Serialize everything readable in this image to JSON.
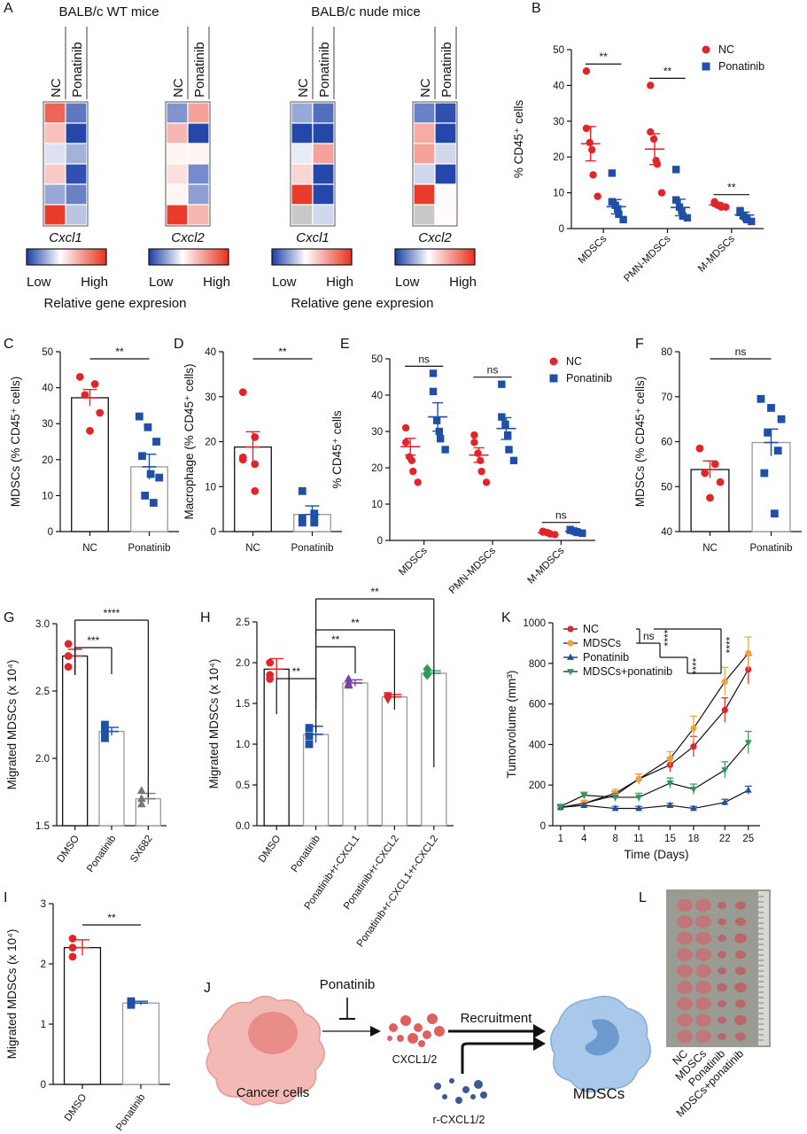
{
  "colors": {
    "nc": "#e0262a",
    "pon": "#1f4fa6",
    "mdsc": "#f0a23a",
    "mp": "#2e8a4a",
    "purple": "#7b3fa0",
    "green": "#2e9a58",
    "gray": "#777777",
    "hm_blue": "#1a3da6",
    "hm_red": "#e8301f"
  },
  "panels": {
    "A": {
      "label": "A",
      "group_titles": [
        "BALB/c WT mice",
        "BALB/c nude mice"
      ],
      "col_labels": [
        "NC",
        "Ponatinib"
      ],
      "heatmaps": [
        {
          "gene": "Cxcl1",
          "cells": [
            [
              0.75,
              -0.7
            ],
            [
              0.3,
              -0.95
            ],
            [
              -0.15,
              -0.4
            ],
            [
              0.25,
              -0.9
            ],
            [
              -0.45,
              -0.65
            ],
            [
              0.95,
              -0.3
            ]
          ]
        },
        {
          "gene": "Cxcl2",
          "cells": [
            [
              -0.55,
              0.45
            ],
            [
              0.35,
              -0.95
            ],
            [
              0.05,
              0.05
            ],
            [
              0.15,
              -0.6
            ],
            [
              0.05,
              -0.5
            ],
            [
              0.95,
              0.35
            ]
          ]
        },
        {
          "gene": "Cxcl1",
          "cells": [
            [
              -0.45,
              -0.75
            ],
            [
              -0.95,
              -0.95
            ],
            [
              -0.1,
              0.45
            ],
            [
              0.2,
              -0.95
            ],
            [
              0.95,
              -0.95
            ],
            [
              "na",
              -0.2
            ]
          ]
        },
        {
          "gene": "Cxcl2",
          "cells": [
            [
              -0.65,
              -0.9
            ],
            [
              0.4,
              -0.95
            ],
            [
              0.45,
              -0.2
            ],
            [
              -0.2,
              -0.95
            ],
            [
              0.95,
              0.02
            ],
            [
              "na",
              0.02
            ]
          ]
        }
      ],
      "legend_low": "Low",
      "legend_high": "High",
      "legend_title": "Relative gene expresion"
    },
    "B": {
      "label": "B",
      "chart_data": {
        "type": "scatter",
        "categories": [
          "MDSCs",
          "PMN-MDSCs",
          "M-MDSCs"
        ],
        "ylabel": "% CD45⁺ cells",
        "ylim": [
          0,
          50
        ],
        "yticks": [
          0,
          10,
          20,
          30,
          40,
          50
        ],
        "series": [
          {
            "name": "NC",
            "points": [
              [
                44,
                28,
                24,
                22,
                15,
                9
              ],
              [
                40,
                27,
                25,
                19,
                18,
                10
              ],
              [
                7.5,
                7,
                6.5,
                6.5,
                6,
                6
              ]
            ],
            "mean": [
              23.7,
              22.2,
              6.6
            ],
            "sem": [
              4.8,
              4.3,
              0.5
            ]
          },
          {
            "name": "Ponatinib",
            "points": [
              [
                15.5,
                7.5,
                6.5,
                5.5,
                4,
                2.5
              ],
              [
                16.5,
                8,
                6,
                5,
                3.5,
                3
              ],
              [
                5,
                4.5,
                3.5,
                3,
                2.5,
                2
              ]
            ],
            "mean": [
              6.1,
              5.9,
              3.8
            ],
            "sem": [
              2.0,
              2.3,
              0.8
            ]
          }
        ],
        "significance": [
          "**",
          "**",
          "**"
        ],
        "legend_position": "top-right"
      }
    },
    "C": {
      "label": "C",
      "chart_data": {
        "type": "bar",
        "categories": [
          "NC",
          "Ponatinib"
        ],
        "ylabel": "MDSCs (% CD45⁺ cells)",
        "ylim": [
          0,
          50
        ],
        "yticks": [
          0,
          10,
          20,
          30,
          40,
          50
        ],
        "values": [
          37.2,
          18.0
        ],
        "sem": [
          2.3,
          3.5
        ],
        "points": [
          [
            43,
            41,
            38,
            33,
            28
          ],
          [
            32,
            29,
            25,
            21,
            16,
            15,
            10,
            8
          ]
        ],
        "significance": "**"
      }
    },
    "D": {
      "label": "D",
      "chart_data": {
        "type": "bar",
        "categories": [
          "NC",
          "Ponatinib"
        ],
        "ylabel": "Macrophage (% CD45⁺ cells)",
        "ylim": [
          0,
          40
        ],
        "yticks": [
          0,
          10,
          20,
          30,
          40
        ],
        "values": [
          18.8,
          3.8
        ],
        "sem": [
          3.4,
          1.9
        ],
        "points": [
          [
            31,
            21,
            16,
            15,
            16.5,
            9
          ],
          [
            9,
            4,
            3,
            2.5,
            2,
            2
          ]
        ],
        "significance": "**"
      }
    },
    "E": {
      "label": "E",
      "chart_data": {
        "type": "scatter",
        "categories": [
          "MDSCs",
          "PMN-MDSCs",
          "M-MDSCs"
        ],
        "ylabel": "% CD45⁺ cells",
        "ylim": [
          0,
          50
        ],
        "yticks": [
          0,
          10,
          20,
          30,
          40,
          50
        ],
        "series": [
          {
            "name": "NC",
            "points": [
              [
                31,
                27,
                23,
                22,
                19,
                16
              ],
              [
                29,
                27,
                24,
                22,
                19,
                16
              ],
              [
                2.5,
                2.3,
                2.2,
                2,
                1.8,
                1.6
              ]
            ],
            "mean": [
              25.8,
              23.5,
              2.1
            ],
            "sem": [
              2.3,
              2.0,
              0.2
            ]
          },
          {
            "name": "Ponatinib",
            "points": [
              [
                46,
                41,
                33,
                30,
                28,
                25
              ],
              [
                43,
                34,
                32,
                29,
                25,
                22
              ],
              [
                3,
                2.8,
                2.6,
                2.4,
                2.2,
                2
              ]
            ],
            "mean": [
              34.0,
              30.8,
              2.5
            ],
            "sem": [
              3.9,
              3.0,
              0.2
            ]
          }
        ],
        "significance": [
          "ns",
          "ns",
          "ns"
        ],
        "legend_position": "top-right"
      }
    },
    "F": {
      "label": "F",
      "chart_data": {
        "type": "bar",
        "categories": [
          "NC",
          "Ponatinib"
        ],
        "ylabel": "MDSCs (% CD45⁺ cells)",
        "ylim": [
          40,
          80
        ],
        "yticks": [
          40,
          50,
          60,
          70,
          80
        ],
        "values": [
          53.8,
          59.8
        ],
        "sem": [
          1.9,
          3.0
        ],
        "points": [
          [
            58.5,
            55,
            53,
            51,
            47.5
          ],
          [
            69.5,
            67.5,
            65,
            62,
            58,
            53,
            44
          ]
        ],
        "significance": "ns"
      }
    },
    "G": {
      "label": "G",
      "chart_data": {
        "type": "bar",
        "categories": [
          "DMSO",
          "Ponatinib",
          "SX682"
        ],
        "ylabel": "Migrated MDSCs (x 10⁴)",
        "ylim": [
          1.5,
          3.0
        ],
        "yticks": [
          "1.5",
          "2.0",
          "2.5",
          "3.0"
        ],
        "values": [
          2.76,
          2.2,
          1.7
        ],
        "sem": [
          0.05,
          0.03,
          0.04
        ],
        "points": [
          [
            2.85,
            2.76,
            2.68
          ],
          [
            2.25,
            2.2,
            2.15
          ],
          [
            1.76,
            1.7,
            1.66
          ]
        ],
        "markers": [
          "circle",
          "square",
          "triangle"
        ],
        "significance": [
          {
            "from": 0,
            "to": 1,
            "label": "***"
          },
          {
            "from": 0,
            "to": 2,
            "label": "****"
          }
        ]
      }
    },
    "H": {
      "label": "H",
      "chart_data": {
        "type": "bar",
        "categories": [
          "DMSO",
          "Ponatinib",
          "Ponatinib+r-CXCL1",
          "Ponatinib+r-CXCL2",
          "Ponatinib+r-CXCL1+r-CXCL2"
        ],
        "ylabel": "Migrated MDSCs (x 10⁴)",
        "ylim": [
          0,
          2.5
        ],
        "yticks": [
          "0.0",
          "0.5",
          "1.0",
          "1.5",
          "2.0",
          "2.5"
        ],
        "values": [
          1.92,
          1.12,
          1.75,
          1.58,
          1.87
        ],
        "sem": [
          0.13,
          0.1,
          0.04,
          0.03,
          0.03
        ],
        "points": [
          [
            2.0,
            1.85,
            1.8
          ],
          [
            1.2,
            1.1,
            1.0
          ],
          [
            1.8,
            1.74,
            1.72
          ],
          [
            1.6,
            1.57,
            1.55
          ],
          [
            1.92,
            1.87,
            1.85
          ]
        ],
        "markers": [
          "circle",
          "square",
          "triangle",
          "inverted-triangle",
          "diamond"
        ],
        "significance": [
          {
            "from": 0,
            "to": 1,
            "label": "**"
          },
          {
            "from": 1,
            "to": 2,
            "label": "**"
          },
          {
            "from": 1,
            "to": 3,
            "label": "**"
          },
          {
            "from": 1,
            "to": 4,
            "label": "**"
          }
        ]
      }
    },
    "K": {
      "label": "K",
      "chart_data": {
        "type": "line",
        "x": [
          "1",
          "4",
          "8",
          "11",
          "15",
          "18",
          "22",
          "25"
        ],
        "xlabel": "Time (Days)",
        "ylabel": "Tumorvolume (mm³)",
        "ylim": [
          0,
          1000
        ],
        "yticks": [
          0,
          200,
          400,
          600,
          800,
          1000
        ],
        "series": [
          {
            "name": "NC",
            "values": [
              90,
              110,
              150,
              230,
              300,
              390,
              570,
              770
            ],
            "err": [
              10,
              15,
              20,
              25,
              35,
              50,
              60,
              70
            ]
          },
          {
            "name": "MDSCs",
            "values": [
              90,
              110,
              160,
              230,
              330,
              480,
              710,
              850
            ],
            "err": [
              10,
              15,
              20,
              25,
              35,
              60,
              70,
              80
            ]
          },
          {
            "name": "Ponatinib",
            "values": [
              90,
              100,
              85,
              85,
              100,
              85,
              115,
              175
            ],
            "err": [
              10,
              10,
              10,
              10,
              10,
              10,
              15,
              20
            ]
          },
          {
            "name": "MDSCs+ponatinib",
            "values": [
              95,
              150,
              140,
              140,
              210,
              180,
              275,
              410
            ],
            "err": [
              10,
              15,
              20,
              20,
              25,
              25,
              40,
              55
            ]
          }
        ],
        "significance": [
          "ns",
          "****",
          "****",
          "****"
        ],
        "legend_position": "top-left"
      }
    },
    "I": {
      "label": "I",
      "chart_data": {
        "type": "bar",
        "categories": [
          "DMSO",
          "Ponatinib"
        ],
        "ylabel": "Migrated MDSCs (x 10⁴)",
        "ylim": [
          0,
          3
        ],
        "yticks": [
          0,
          1,
          2,
          3
        ],
        "values": [
          2.27,
          1.35
        ],
        "sem": [
          0.13,
          0.03
        ],
        "points": [
          [
            2.42,
            2.27,
            2.12
          ],
          [
            1.38,
            1.35,
            1.32
          ]
        ],
        "significance": "**"
      }
    },
    "J": {
      "label": "J",
      "drug": "Ponatinib",
      "cancer": "Cancer cells",
      "chemokine": "CXCL1/2",
      "arrow_label": "Recruitment",
      "recombinant": "r-CXCL1/2",
      "target": "MDSCs"
    },
    "L": {
      "label": "L",
      "groups": [
        "NC",
        "MDSCs",
        "Ponatinib",
        "MDSCs+ponatinib"
      ]
    }
  }
}
